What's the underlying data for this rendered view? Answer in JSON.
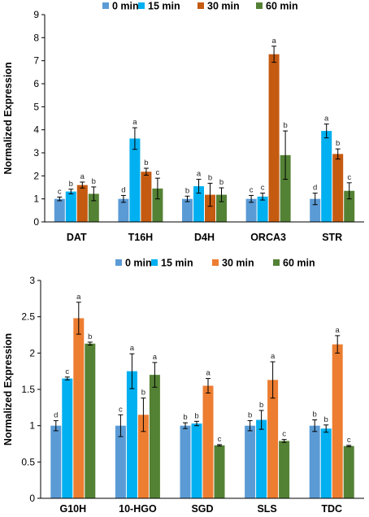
{
  "chart_data": [
    {
      "type": "bar",
      "ylabel": "Normalized Expression",
      "ylim": [
        0,
        9
      ],
      "yticks": [
        0,
        1,
        2,
        3,
        4,
        5,
        6,
        7,
        8,
        9
      ],
      "legend_position": "top",
      "grid": false,
      "categories": [
        "DAT",
        "T16H",
        "D4H",
        "ORCA3",
        "STR"
      ],
      "series": [
        {
          "name": "0 min",
          "color": "#5b9bd5",
          "values": [
            1.0,
            1.0,
            1.0,
            1.0,
            1.0
          ],
          "errors": [
            0.08,
            0.15,
            0.12,
            0.15,
            0.25
          ],
          "labels": [
            "c",
            "d",
            "b",
            "c",
            "d"
          ]
        },
        {
          "name": "15 min",
          "color": "#00b0f0",
          "values": [
            1.32,
            3.62,
            1.55,
            1.1,
            3.95
          ],
          "errors": [
            0.1,
            0.47,
            0.3,
            0.15,
            0.3
          ],
          "labels": [
            "b",
            "a",
            "a",
            "c",
            "a"
          ]
        },
        {
          "name": "30 min",
          "color": "#c55a11",
          "values": [
            1.6,
            2.18,
            1.18,
            7.28,
            2.95
          ],
          "errors": [
            0.13,
            0.15,
            0.5,
            0.35,
            0.22
          ],
          "labels": [
            "a",
            "b",
            "b",
            "a",
            "b"
          ]
        },
        {
          "name": "60 min",
          "color": "#548235",
          "values": [
            1.22,
            1.45,
            1.18,
            2.9,
            1.35
          ],
          "errors": [
            0.3,
            0.45,
            0.3,
            1.05,
            0.35
          ],
          "labels": [
            "b",
            "c",
            "b",
            "b",
            "c"
          ]
        }
      ]
    },
    {
      "type": "bar",
      "ylabel": "Normalized Expression",
      "ylim": [
        0,
        3
      ],
      "yticks": [
        0,
        0.5,
        1,
        1.5,
        2,
        2.5,
        3
      ],
      "legend_position": "top",
      "grid": false,
      "categories": [
        "G10H",
        "10-HGO",
        "SGD",
        "SLS",
        "TDC"
      ],
      "series": [
        {
          "name": "0 min",
          "color": "#5b9bd5",
          "values": [
            1.0,
            1.0,
            1.0,
            1.0,
            1.0
          ],
          "errors": [
            0.07,
            0.15,
            0.04,
            0.07,
            0.08
          ],
          "labels": [
            "d",
            "c",
            "b",
            "b",
            "b"
          ]
        },
        {
          "name": "15 min",
          "color": "#00b0f0",
          "values": [
            1.65,
            1.75,
            1.03,
            1.08,
            0.96
          ],
          "errors": [
            0.02,
            0.24,
            0.03,
            0.13,
            0.05
          ],
          "labels": [
            "c",
            "a",
            "b",
            "b",
            "b"
          ]
        },
        {
          "name": "30 min",
          "color": "#ed7d31",
          "values": [
            2.48,
            1.15,
            1.55,
            1.63,
            2.12
          ],
          "errors": [
            0.22,
            0.23,
            0.1,
            0.25,
            0.12
          ],
          "labels": [
            "a",
            "b",
            "a",
            "a",
            "a"
          ]
        },
        {
          "name": "60 min",
          "color": "#548235",
          "values": [
            2.13,
            1.7,
            0.73,
            0.79,
            0.72
          ],
          "errors": [
            0.02,
            0.17,
            0.01,
            0.02,
            0.01
          ],
          "labels": [
            "b",
            "a",
            "c",
            "c",
            "c"
          ]
        }
      ]
    }
  ]
}
